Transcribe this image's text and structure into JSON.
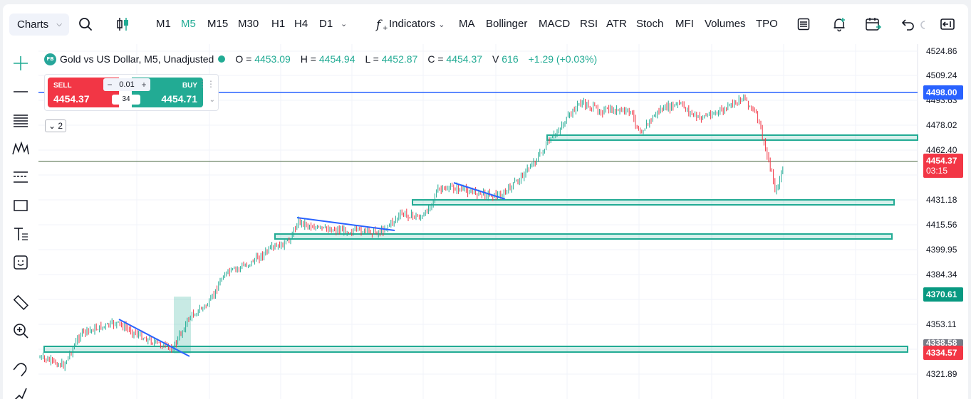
{
  "toolbar": {
    "charts_label": "Charts",
    "timeframes": [
      {
        "label": "M1",
        "active": false
      },
      {
        "label": "M5",
        "active": true
      },
      {
        "label": "M15",
        "active": false
      },
      {
        "label": "M30",
        "active": false
      },
      {
        "label": "H1",
        "active": false
      },
      {
        "label": "H4",
        "active": false
      },
      {
        "label": "D1",
        "active": false
      }
    ],
    "indicators_label": "Indicators",
    "indicator_shortcuts": [
      "MA",
      "Bollinger",
      "MACD",
      "RSI",
      "ATR",
      "Stoch",
      "MFI",
      "Volumes",
      "TPO"
    ]
  },
  "left_tools": [
    "crosshair-icon",
    "horizontal-line-icon",
    "fib-levels-icon",
    "patterns-icon",
    "channel-icon",
    "rectangle-icon",
    "text-icon",
    "emoji-icon",
    "ruler-icon",
    "zoom-icon",
    "magnet-icon",
    "brush-icon"
  ],
  "legend": {
    "logo": "FB",
    "title": "Gold vs US Dollar, M5, Unadjusted",
    "open_label": "O =",
    "open": "4453.09",
    "high_label": "H =",
    "high": "4454.94",
    "low_label": "L =",
    "low": "4452.87",
    "close_label": "C =",
    "close": "4454.37",
    "volume_label": "V",
    "volume": "616",
    "change": "+1.29 (+0.03%)"
  },
  "trade_panel": {
    "sell_label": "SELL",
    "sell_price": "4454.37",
    "buy_label": "BUY",
    "buy_price": "4454.71",
    "quantity": "0.01",
    "spread": "34"
  },
  "collapsed_indicators": "2",
  "price_axis": {
    "ticks": [
      "4524.86",
      "4509.24",
      "4493.63",
      "4478.02",
      "4462.40",
      "4431.18",
      "4415.56",
      "4399.95",
      "4384.34",
      "4353.11",
      "4321.89"
    ],
    "tags": [
      {
        "price": "4498.00",
        "color": "#2962ff"
      },
      {
        "price": "4454.37",
        "sub": "03:15",
        "color": "#f23645"
      },
      {
        "price": "4370.61",
        "color": "#089981"
      },
      {
        "price": "4338.58",
        "color": "#787b86"
      },
      {
        "price": "4334.57",
        "color": "#f23645"
      }
    ]
  },
  "colors": {
    "bull": "#22ab94",
    "bear": "#f23645",
    "trend": "#2962ff",
    "zone": "#22ab94"
  }
}
